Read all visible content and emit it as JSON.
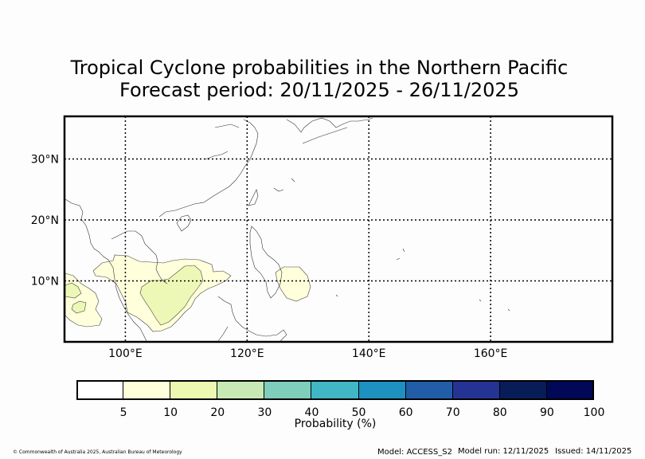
{
  "title": {
    "line1": "Tropical Cyclone probabilities in the Northern Pacific",
    "line2": "Forecast period: 20/11/2025 - 26/11/2025"
  },
  "map": {
    "region": "Northern Pacific",
    "lon_range": [
      90,
      180
    ],
    "lat_range": [
      0,
      37
    ],
    "lon_ticks": [
      {
        "value": 100,
        "label": "100°E"
      },
      {
        "value": 120,
        "label": "120°E"
      },
      {
        "value": 140,
        "label": "140°E"
      },
      {
        "value": 160,
        "label": "160°E"
      }
    ],
    "lat_ticks": [
      {
        "value": 10,
        "label": "10°N"
      },
      {
        "value": 20,
        "label": "20°N"
      },
      {
        "value": 30,
        "label": "30°N"
      }
    ],
    "gridlines": "dotted",
    "probability_areas": [
      {
        "level": "5-10",
        "color": "#ffffe0",
        "region": "South China Sea / Indochina"
      },
      {
        "level": "5-10",
        "color": "#ffffe0",
        "region": "Bay of Bengal edge"
      },
      {
        "level": "5-10",
        "color": "#ffffe0",
        "region": "East of Philippines"
      },
      {
        "level": "10-20",
        "color": "#edf8b1",
        "region": "Southern South China Sea"
      },
      {
        "level": "10-20",
        "color": "#edf8b1",
        "region": "Andaman Sea"
      }
    ]
  },
  "colorbar": {
    "ticks": [
      "5",
      "10",
      "20",
      "30",
      "40",
      "50",
      "60",
      "70",
      "80",
      "90",
      "100"
    ],
    "colors": [
      "#ffffff",
      "#ffffd9",
      "#edf8b1",
      "#c7e9b4",
      "#7fcdbb",
      "#41b6c4",
      "#1d91c0",
      "#225ea8",
      "#253494",
      "#081d58",
      "#000857"
    ],
    "label": "Probability (%)"
  },
  "footer": {
    "copyright": "© Commonwealth of Australia 2025, Australian Bureau of Meteorology",
    "model": "Model: ACCESS_S2",
    "model_run": "Model run: 12/11/2025",
    "issued": "Issued: 14/11/2025"
  }
}
